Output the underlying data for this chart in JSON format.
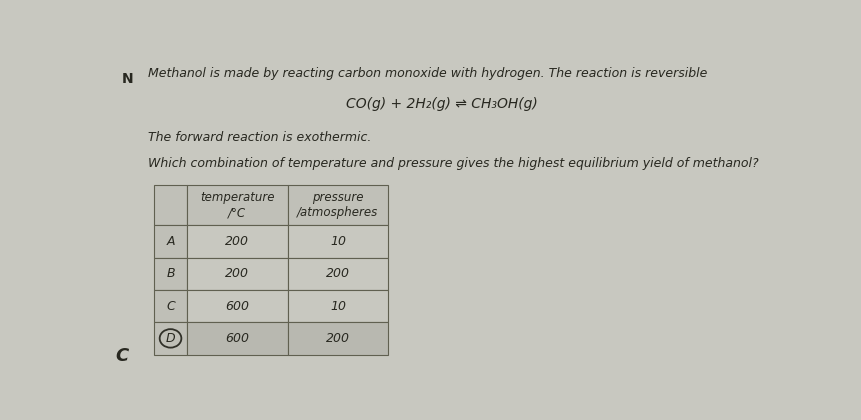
{
  "title_line1": "Methanol is made by reacting carbon monoxide with hydrogen. The reaction is reversible",
  "equation": "CO(g) + 2H₂(g) ⇌ CH₃OH(g)",
  "line2": "The forward reaction is exothermic.",
  "question": "Which combination of temperature and pressure gives the highest equilibrium yield of methanol?",
  "rows": [
    [
      "A",
      "200",
      "10"
    ],
    [
      "B",
      "200",
      "200"
    ],
    [
      "C",
      "600",
      "10"
    ],
    [
      "D",
      "600",
      "200"
    ]
  ],
  "highlighted_row": 3,
  "bg_color": "#c8c8c0",
  "text_color": "#282820",
  "question_number_label": "N",
  "bottom_label": "C"
}
